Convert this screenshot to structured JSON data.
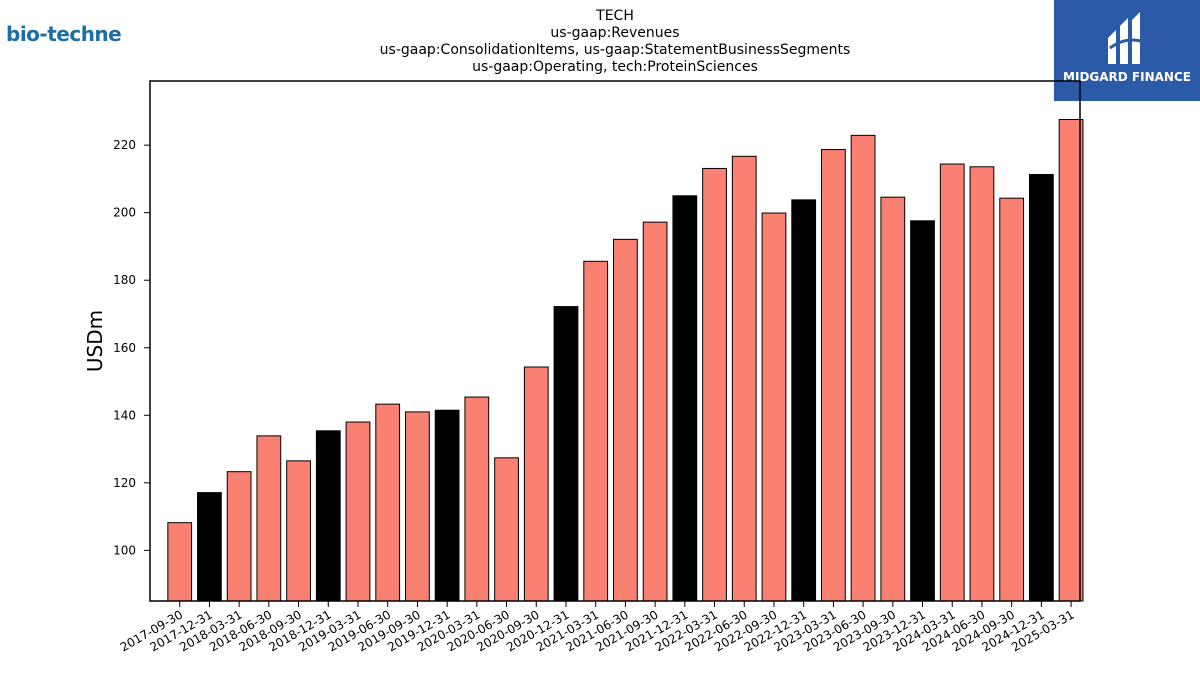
{
  "logos": {
    "left_text": "bio-techne",
    "right_text": "MIDGARD FINANCE"
  },
  "colors": {
    "bar_default": "#fa8072",
    "bar_highlight": "#000000",
    "logo_left": "#1c6ea4",
    "logo_right_bg": "#2a5aa8"
  },
  "chart_data": {
    "type": "bar",
    "title_lines": [
      "TECH",
      "us-gaap:Revenues",
      "us-gaap:ConsolidationItems, us-gaap:StatementBusinessSegments",
      "us-gaap:Operating, tech:ProteinSciences"
    ],
    "xlabel": "",
    "ylabel": "USDm",
    "ylim": [
      85,
      239
    ],
    "yticks": [
      100,
      120,
      140,
      160,
      180,
      200,
      220
    ],
    "grid": false,
    "categories": [
      "2017-09-30",
      "2017-12-31",
      "2018-03-31",
      "2018-06-30",
      "2018-09-30",
      "2018-12-31",
      "2019-03-31",
      "2019-06-30",
      "2019-09-30",
      "2019-12-31",
      "2020-03-31",
      "2020-06-30",
      "2020-09-30",
      "2020-12-31",
      "2021-03-31",
      "2021-06-30",
      "2021-09-30",
      "2021-12-31",
      "2022-03-31",
      "2022-06-30",
      "2022-09-30",
      "2022-12-31",
      "2023-03-31",
      "2023-06-30",
      "2023-09-30",
      "2023-12-31",
      "2024-03-31",
      "2024-06-30",
      "2024-09-30",
      "2024-12-31",
      "2025-03-31"
    ],
    "values": [
      108.2,
      117.1,
      123.3,
      133.9,
      126.5,
      135.4,
      138.0,
      143.3,
      141.0,
      141.5,
      145.4,
      127.4,
      154.3,
      172.2,
      185.6,
      192.1,
      197.2,
      205.0,
      213.1,
      216.7,
      199.9,
      203.8,
      218.7,
      222.9,
      204.6,
      197.6,
      214.4,
      213.6,
      204.3,
      211.3,
      227.6
    ],
    "highlight": [
      false,
      true,
      false,
      false,
      false,
      true,
      false,
      false,
      false,
      true,
      false,
      false,
      false,
      true,
      false,
      false,
      false,
      true,
      false,
      false,
      false,
      true,
      false,
      false,
      false,
      true,
      false,
      false,
      false,
      true,
      false
    ]
  }
}
